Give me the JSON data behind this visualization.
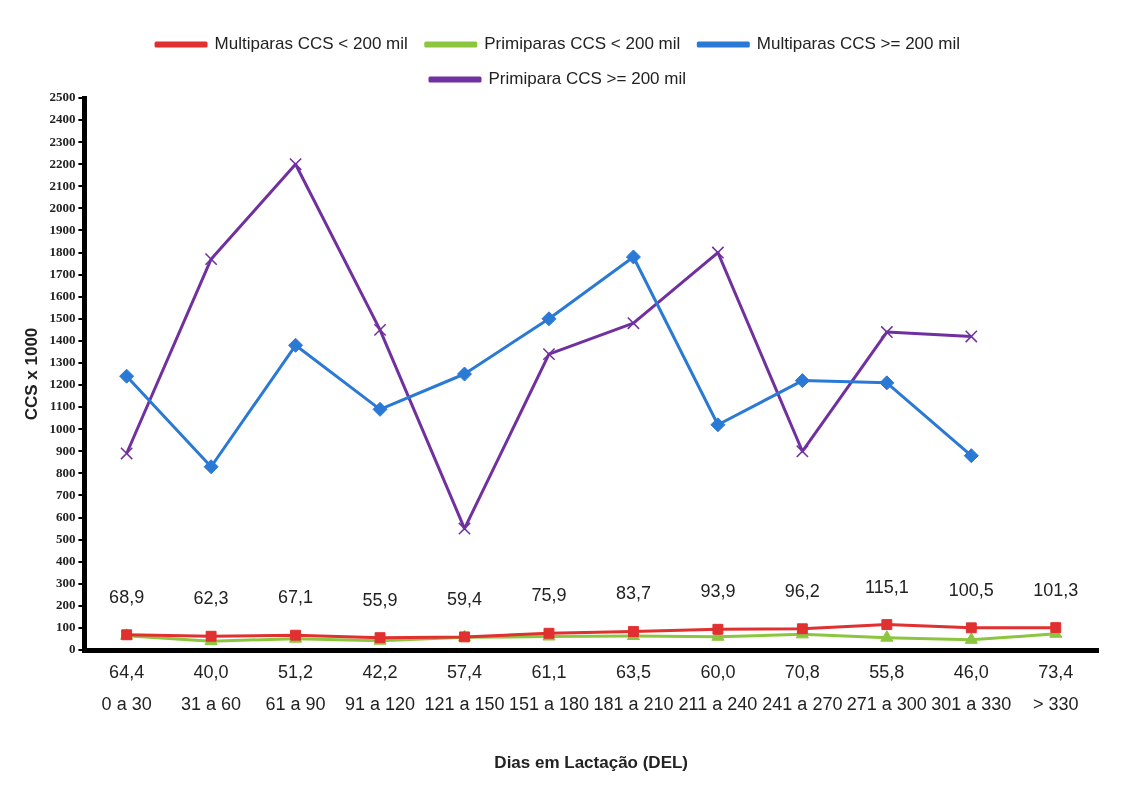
{
  "chart_data": {
    "type": "line",
    "xlabel": "Dias em Lactação (DEL)",
    "ylabel": "CCS x 1000",
    "categories": [
      "0 a 30",
      "31 a 60",
      "61 a 90",
      "91 a 120",
      "121 a 150",
      "151 a 180",
      "181 a 210",
      "211 a 240",
      "241 a 270",
      "271 a 300",
      "301 a 330",
      "> 330"
    ],
    "series": [
      {
        "name": "Multiparas CCS < 200 mil",
        "color": "#e03030",
        "marker": "square",
        "values": [
          68.9,
          62.3,
          67.1,
          55.9,
          59.4,
          75.9,
          83.7,
          93.9,
          96.2,
          115.1,
          100.5,
          101.3
        ],
        "value_labels": [
          "68,9",
          "62,3",
          "67,1",
          "55,9",
          "59,4",
          "75,9",
          "83,7",
          "93,9",
          "96,2",
          "115,1",
          "100,5",
          "101,3"
        ]
      },
      {
        "name": "Primiparas CCS < 200 mil",
        "color": "#8cc63f",
        "marker": "triangle",
        "values": [
          64.4,
          40.0,
          51.2,
          42.2,
          57.4,
          61.1,
          63.5,
          60.0,
          70.8,
          55.8,
          46.0,
          73.4
        ],
        "value_labels": [
          "64,4",
          "40,0",
          "51,2",
          "42,2",
          "57,4",
          "61,1",
          "63,5",
          "60,0",
          "70,8",
          "55,8",
          "46,0",
          "73,4"
        ]
      },
      {
        "name": "Multiparas CCS >= 200 mil",
        "color": "#2a7ad5",
        "marker": "diamond",
        "values": [
          1240,
          830,
          1380,
          1090,
          1250,
          1500,
          1780,
          1020,
          1220,
          1210,
          880,
          null
        ]
      },
      {
        "name": "Primipara CCS >= 200 mil",
        "color": "#7030a0",
        "marker": "cross",
        "values": [
          890,
          1770,
          2200,
          1450,
          550,
          1340,
          1480,
          1800,
          900,
          1440,
          1420,
          null
        ]
      }
    ],
    "ylim": [
      0,
      2500
    ],
    "yticks": [
      0,
      100,
      200,
      300,
      400,
      500,
      600,
      700,
      800,
      900,
      1000,
      1100,
      1200,
      1300,
      1400,
      1500,
      1600,
      1700,
      1800,
      1900,
      2000,
      2100,
      2200,
      2300,
      2400,
      2500
    ],
    "grid": false,
    "legend": "top"
  }
}
